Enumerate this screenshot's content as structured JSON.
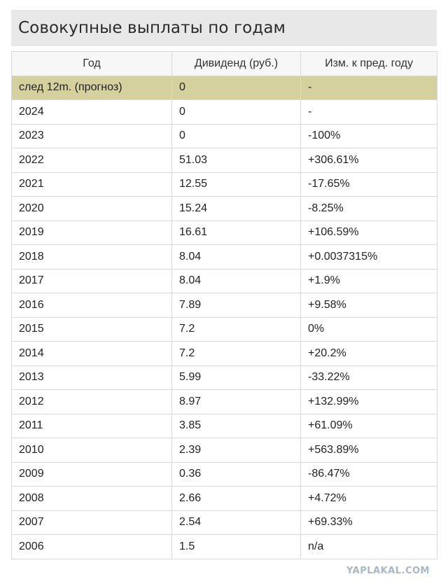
{
  "title": "Совокупные выплаты по годам",
  "table": {
    "headers": [
      "Год",
      "Дивиденд (руб.)",
      "Изм. к пред. году"
    ],
    "rows": [
      {
        "year": "след 12m. (прогноз)",
        "dividend": "0",
        "change": "-",
        "trend": "neu",
        "forecast": true
      },
      {
        "year": "2024",
        "dividend": "0",
        "change": "-",
        "trend": "neu"
      },
      {
        "year": "2023",
        "dividend": "0",
        "change": "-100%",
        "trend": "neg"
      },
      {
        "year": "2022",
        "dividend": "51.03",
        "change": "+306.61%",
        "trend": "pos"
      },
      {
        "year": "2021",
        "dividend": "12.55",
        "change": "-17.65%",
        "trend": "neg"
      },
      {
        "year": "2020",
        "dividend": "15.24",
        "change": "-8.25%",
        "trend": "neg"
      },
      {
        "year": "2019",
        "dividend": "16.61",
        "change": "+106.59%",
        "trend": "pos"
      },
      {
        "year": "2018",
        "dividend": "8.04",
        "change": "+0.0037315%",
        "trend": "pos"
      },
      {
        "year": "2017",
        "dividend": "8.04",
        "change": "+1.9%",
        "trend": "pos"
      },
      {
        "year": "2016",
        "dividend": "7.89",
        "change": "+9.58%",
        "trend": "pos"
      },
      {
        "year": "2015",
        "dividend": "7.2",
        "change": "0%",
        "trend": "neu"
      },
      {
        "year": "2014",
        "dividend": "7.2",
        "change": "+20.2%",
        "trend": "pos"
      },
      {
        "year": "2013",
        "dividend": "5.99",
        "change": "-33.22%",
        "trend": "neg"
      },
      {
        "year": "2012",
        "dividend": "8.97",
        "change": "+132.99%",
        "trend": "pos"
      },
      {
        "year": "2011",
        "dividend": "3.85",
        "change": "+61.09%",
        "trend": "pos"
      },
      {
        "year": "2010",
        "dividend": "2.39",
        "change": "+563.89%",
        "trend": "pos"
      },
      {
        "year": "2009",
        "dividend": "0.36",
        "change": "-86.47%",
        "trend": "neg"
      },
      {
        "year": "2008",
        "dividend": "2.66",
        "change": "+4.72%",
        "trend": "pos"
      },
      {
        "year": "2007",
        "dividend": "2.54",
        "change": "+69.33%",
        "trend": "pos"
      },
      {
        "year": "2006",
        "dividend": "1.5",
        "change": "n/a",
        "trend": "neu"
      }
    ]
  },
  "watermark": "YAPLAKAL.COM",
  "colors": {
    "positive": "#2e8b2e",
    "negative": "#d23a3a",
    "forecast_row": "#d5d19f",
    "title_bar": "#e8e8e8"
  }
}
